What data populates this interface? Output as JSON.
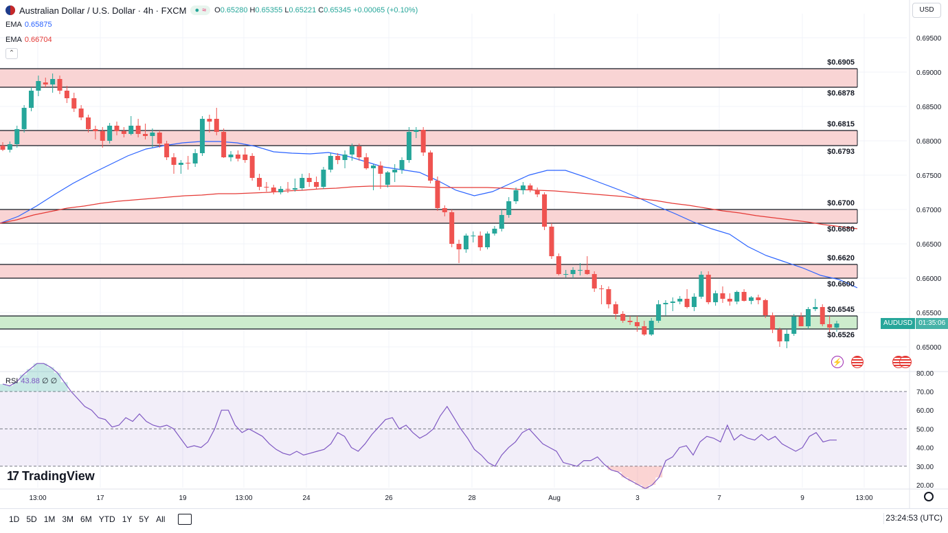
{
  "header": {
    "symbol": "Australian Dollar / U.S. Dollar · 4h · FXCM",
    "pill_left": "≈",
    "open_label": "O",
    "open": "0.65280",
    "high_label": "H",
    "high": "0.65355",
    "low_label": "L",
    "low": "0.65221",
    "close_label": "C",
    "close": "0.65345",
    "change": "+0.00065 (+0.10%)",
    "currency": "USD"
  },
  "ema": [
    {
      "label": "EMA",
      "value": "0.65875",
      "color": "#2962ff"
    },
    {
      "label": "EMA",
      "value": "0.66704",
      "color": "#e53935"
    }
  ],
  "rsi_legend": {
    "label": "RSI",
    "value": "43.88",
    "extra": "∅ ∅"
  },
  "price_badge": {
    "symbol": "AUDUSD",
    "countdown": "01:35:06"
  },
  "logo": "TradingView",
  "timeframes": [
    "1D",
    "5D",
    "1M",
    "3M",
    "6M",
    "YTD",
    "1Y",
    "5Y",
    "All"
  ],
  "clock": "23:24:53 (UTC)",
  "colors": {
    "up": "#26a69a",
    "down": "#ef5350",
    "ema_fast": "#2962ff",
    "ema_slow": "#e53935",
    "rsi": "#7e57c2",
    "resistance": "#f9d4d4",
    "support": "#cdeccd"
  },
  "chart_data": [
    {
      "type": "candlestick",
      "title": "Australian Dollar / U.S. Dollar · 4h · FXCM",
      "y_ticks": [
        "0.69500",
        "0.69000",
        "0.68500",
        "0.68000",
        "0.67500",
        "0.67000",
        "0.66500",
        "0.66000",
        "0.65500",
        "0.65000"
      ],
      "ylim": [
        0.6493,
        0.6975
      ],
      "x_tick_labels": [
        "13:00",
        "17",
        "19",
        "13:00",
        "24",
        "26",
        "28",
        "Aug",
        "3",
        "7",
        "9",
        "13:00"
      ],
      "zones": [
        {
          "kind": "resistance",
          "low": 0.6878,
          "high": 0.6905,
          "labels": [
            "$0.6905",
            "$0.6878"
          ]
        },
        {
          "kind": "resistance",
          "low": 0.6793,
          "high": 0.6815,
          "labels": [
            "$0.6815",
            "$0.6793"
          ]
        },
        {
          "kind": "resistance",
          "low": 0.668,
          "high": 0.67,
          "labels": [
            "$0.6700",
            "$0.6680"
          ]
        },
        {
          "kind": "resistance",
          "low": 0.66,
          "high": 0.662,
          "labels": [
            "$0.6620",
            "$0.6600"
          ]
        },
        {
          "kind": "support",
          "low": 0.6526,
          "high": 0.6545,
          "labels": [
            "$0.6545",
            "$0.6526"
          ]
        }
      ],
      "candles": [
        [
          0.6793,
          0.6798,
          0.6785,
          0.6787
        ],
        [
          0.6787,
          0.6799,
          0.6783,
          0.6795
        ],
        [
          0.6795,
          0.6822,
          0.679,
          0.6817
        ],
        [
          0.6817,
          0.6852,
          0.6812,
          0.6848
        ],
        [
          0.6848,
          0.6878,
          0.6843,
          0.6873
        ],
        [
          0.6873,
          0.6895,
          0.6865,
          0.6887
        ],
        [
          0.6885,
          0.6892,
          0.6878,
          0.6882
        ],
        [
          0.6882,
          0.6898,
          0.687,
          0.689
        ],
        [
          0.689,
          0.6895,
          0.6868,
          0.6873
        ],
        [
          0.6873,
          0.688,
          0.6855,
          0.6862
        ],
        [
          0.6862,
          0.687,
          0.6842,
          0.6847
        ],
        [
          0.6847,
          0.6852,
          0.683,
          0.6834
        ],
        [
          0.6834,
          0.6838,
          0.6812,
          0.6817
        ],
        [
          0.6817,
          0.6822,
          0.6802,
          0.6814
        ],
        [
          0.6814,
          0.682,
          0.679,
          0.68
        ],
        [
          0.68,
          0.6826,
          0.6796,
          0.6822
        ],
        [
          0.6822,
          0.6828,
          0.6808,
          0.6814
        ],
        [
          0.6814,
          0.682,
          0.6805,
          0.681
        ],
        [
          0.681,
          0.6836,
          0.6808,
          0.6822
        ],
        [
          0.6822,
          0.6832,
          0.6805,
          0.681
        ],
        [
          0.681,
          0.6825,
          0.6802,
          0.6807
        ],
        [
          0.6807,
          0.6818,
          0.679,
          0.6812
        ],
        [
          0.6812,
          0.6815,
          0.679,
          0.6796
        ],
        [
          0.6796,
          0.68,
          0.6772,
          0.6776
        ],
        [
          0.6776,
          0.6782,
          0.6752,
          0.6765
        ],
        [
          0.6765,
          0.6772,
          0.6752,
          0.6768
        ],
        [
          0.6768,
          0.6778,
          0.6758,
          0.6767
        ],
        [
          0.6767,
          0.6788,
          0.6762,
          0.6782
        ],
        [
          0.6782,
          0.6836,
          0.6778,
          0.6832
        ],
        [
          0.6832,
          0.6838,
          0.6812,
          0.6828
        ],
        [
          0.6832,
          0.6848,
          0.6808,
          0.6813
        ],
        [
          0.6813,
          0.6818,
          0.6775,
          0.6776
        ],
        [
          0.6776,
          0.6785,
          0.677,
          0.678
        ],
        [
          0.678,
          0.6786,
          0.677,
          0.6774
        ],
        [
          0.678,
          0.679,
          0.6768,
          0.6772
        ],
        [
          0.6778,
          0.6782,
          0.6742,
          0.6746
        ],
        [
          0.6746,
          0.6752,
          0.6728,
          0.6733
        ],
        [
          0.6733,
          0.674,
          0.6726,
          0.6732
        ],
        [
          0.6732,
          0.6736,
          0.6722,
          0.6725
        ],
        [
          0.6725,
          0.6734,
          0.6722,
          0.673
        ],
        [
          0.673,
          0.674,
          0.6724,
          0.6729
        ],
        [
          0.6729,
          0.6745,
          0.6726,
          0.6731
        ],
        [
          0.6731,
          0.6752,
          0.6728,
          0.6746
        ],
        [
          0.6746,
          0.6753,
          0.6733,
          0.674
        ],
        [
          0.674,
          0.6748,
          0.673,
          0.6733
        ],
        [
          0.6733,
          0.6762,
          0.673,
          0.6758
        ],
        [
          0.6758,
          0.6782,
          0.6754,
          0.6778
        ],
        [
          0.6778,
          0.6782,
          0.6766,
          0.6772
        ],
        [
          0.6772,
          0.6786,
          0.676,
          0.678
        ],
        [
          0.678,
          0.6796,
          0.6771,
          0.6792
        ],
        [
          0.6792,
          0.6796,
          0.6771,
          0.6776
        ],
        [
          0.6776,
          0.6782,
          0.6758,
          0.676
        ],
        [
          0.676,
          0.6766,
          0.6728,
          0.6764
        ],
        [
          0.6764,
          0.677,
          0.673,
          0.6752
        ],
        [
          0.6736,
          0.6756,
          0.6732,
          0.6754
        ],
        [
          0.6754,
          0.6766,
          0.674,
          0.6758
        ],
        [
          0.6758,
          0.6776,
          0.6752,
          0.6772
        ],
        [
          0.6772,
          0.682,
          0.6768,
          0.6813
        ],
        [
          0.6813,
          0.682,
          0.6804,
          0.6816
        ],
        [
          0.6816,
          0.682,
          0.6778,
          0.6783
        ],
        [
          0.6783,
          0.6786,
          0.6738,
          0.6742
        ],
        [
          0.6742,
          0.6748,
          0.6698,
          0.6702
        ],
        [
          0.6702,
          0.6706,
          0.669,
          0.6696
        ],
        [
          0.6696,
          0.67,
          0.6645,
          0.665
        ],
        [
          0.665,
          0.6656,
          0.6622,
          0.6642
        ],
        [
          0.6642,
          0.6665,
          0.6637,
          0.6662
        ],
        [
          0.6662,
          0.6668,
          0.6652,
          0.6662
        ],
        [
          0.6662,
          0.6668,
          0.664,
          0.6645
        ],
        [
          0.6645,
          0.6668,
          0.6642,
          0.6665
        ],
        [
          0.6665,
          0.6676,
          0.6662,
          0.6672
        ],
        [
          0.6672,
          0.67,
          0.6668,
          0.6692
        ],
        [
          0.6692,
          0.6718,
          0.6688,
          0.6712
        ],
        [
          0.6712,
          0.6732,
          0.6708,
          0.6728
        ],
        [
          0.6728,
          0.674,
          0.6722,
          0.6735
        ],
        [
          0.6735,
          0.6738,
          0.6725,
          0.6728
        ],
        [
          0.6728,
          0.6732,
          0.6718,
          0.6722
        ],
        [
          0.6722,
          0.6725,
          0.667,
          0.6675
        ],
        [
          0.6675,
          0.668,
          0.6628,
          0.6632
        ],
        [
          0.6632,
          0.6636,
          0.6604,
          0.6606
        ],
        [
          0.6606,
          0.6612,
          0.6601,
          0.6606
        ],
        [
          0.6606,
          0.6616,
          0.66,
          0.6612
        ],
        [
          0.6612,
          0.6622,
          0.6604,
          0.6612
        ],
        [
          0.6612,
          0.6632,
          0.6605,
          0.6606
        ],
        [
          0.6606,
          0.661,
          0.658,
          0.6585
        ],
        [
          0.6585,
          0.659,
          0.6562,
          0.6584
        ],
        [
          0.6584,
          0.6588,
          0.6556,
          0.6562
        ],
        [
          0.6562,
          0.6566,
          0.654,
          0.6548
        ],
        [
          0.6548,
          0.6552,
          0.6535,
          0.6538
        ],
        [
          0.6538,
          0.6545,
          0.6532,
          0.6536
        ],
        [
          0.6536,
          0.6545,
          0.6522,
          0.653
        ],
        [
          0.653,
          0.6538,
          0.6516,
          0.6518
        ],
        [
          0.6518,
          0.6542,
          0.6516,
          0.6538
        ],
        [
          0.6538,
          0.6568,
          0.6535,
          0.6562
        ],
        [
          0.6562,
          0.6568,
          0.6546,
          0.6564
        ],
        [
          0.6564,
          0.6572,
          0.6552,
          0.6566
        ],
        [
          0.6566,
          0.6574,
          0.6562,
          0.657
        ],
        [
          0.657,
          0.6584,
          0.6556,
          0.6558
        ],
        [
          0.6558,
          0.6578,
          0.6552,
          0.6573
        ],
        [
          0.6573,
          0.661,
          0.657,
          0.6605
        ],
        [
          0.6605,
          0.661,
          0.6562,
          0.6565
        ],
        [
          0.6565,
          0.6582,
          0.656,
          0.6578
        ],
        [
          0.6578,
          0.6588,
          0.6564,
          0.657
        ],
        [
          0.657,
          0.6578,
          0.656,
          0.6566
        ],
        [
          0.6566,
          0.6582,
          0.6562,
          0.658
        ],
        [
          0.658,
          0.6584,
          0.6566,
          0.6567
        ],
        [
          0.6567,
          0.6574,
          0.6562,
          0.6572
        ],
        [
          0.6572,
          0.6576,
          0.6562,
          0.6568
        ],
        [
          0.6568,
          0.657,
          0.6542,
          0.6546
        ],
        [
          0.6546,
          0.655,
          0.652,
          0.6525
        ],
        [
          0.6525,
          0.6528,
          0.65,
          0.6508
        ],
        [
          0.6508,
          0.6525,
          0.6498,
          0.6519
        ],
        [
          0.6519,
          0.6548,
          0.6516,
          0.6544
        ],
        [
          0.6544,
          0.655,
          0.653,
          0.653
        ],
        [
          0.653,
          0.6558,
          0.6526,
          0.6555
        ],
        [
          0.6555,
          0.657,
          0.6552,
          0.6558
        ],
        [
          0.6558,
          0.6562,
          0.653,
          0.6533
        ],
        [
          0.6533,
          0.6545,
          0.652,
          0.6528
        ],
        [
          0.6528,
          0.6538,
          0.6522,
          0.6534
        ]
      ],
      "ema_fast": [
        0.668,
        0.669,
        0.6705,
        0.6722,
        0.6738,
        0.6752,
        0.6765,
        0.6778,
        0.6788,
        0.6793,
        0.6797,
        0.6799,
        0.6799,
        0.6797,
        0.6792,
        0.6784,
        0.6782,
        0.6781,
        0.6783,
        0.6778,
        0.677,
        0.6762,
        0.6758,
        0.6754,
        0.6742,
        0.6728,
        0.672,
        0.6726,
        0.6738,
        0.675,
        0.6757,
        0.6757,
        0.6748,
        0.6738,
        0.6728,
        0.6717,
        0.6705,
        0.6694,
        0.6682,
        0.6672,
        0.6664,
        0.6646,
        0.6633,
        0.6624,
        0.6615,
        0.6604,
        0.6598,
        0.6586
      ],
      "ema_slow": [
        0.668,
        0.6685,
        0.6692,
        0.6697,
        0.6702,
        0.6705,
        0.6709,
        0.6712,
        0.6714,
        0.6716,
        0.6718,
        0.672,
        0.6721,
        0.6723,
        0.6723,
        0.6724,
        0.6725,
        0.6727,
        0.6728,
        0.673,
        0.6731,
        0.6733,
        0.6734,
        0.6734,
        0.6734,
        0.6733,
        0.6732,
        0.6732,
        0.6732,
        0.6732,
        0.6731,
        0.6729,
        0.6728,
        0.6727,
        0.6725,
        0.6723,
        0.6721,
        0.6719,
        0.6716,
        0.6713,
        0.6709,
        0.6706,
        0.6702,
        0.6698,
        0.6695,
        0.6691,
        0.6688,
        0.6685,
        0.6682,
        0.6678,
        0.6675,
        0.6672
      ]
    },
    {
      "type": "line",
      "title": "RSI",
      "y_ticks": [
        "80.00",
        "70.00",
        "60.00",
        "50.00",
        "40.00",
        "30.00",
        "20.00"
      ],
      "ylim": [
        18,
        82
      ],
      "bands": [
        70,
        50,
        30
      ],
      "values": [
        74,
        73,
        75,
        79,
        82,
        85,
        85,
        83,
        80,
        75,
        70,
        66,
        62,
        60,
        56,
        55,
        51,
        52,
        56,
        54,
        58,
        54,
        52,
        51,
        52,
        50,
        45,
        40,
        41,
        40,
        43,
        50,
        60,
        60,
        52,
        48,
        50,
        48,
        46,
        42,
        39,
        37,
        36,
        38,
        36,
        37,
        38,
        39,
        42,
        48,
        46,
        40,
        38,
        42,
        47,
        51,
        55,
        56,
        50,
        52,
        48,
        45,
        47,
        50,
        57,
        62,
        56,
        50,
        45,
        39,
        36,
        32,
        30,
        36,
        40,
        43,
        48,
        50,
        46,
        42,
        40,
        38,
        32,
        31,
        30,
        33,
        33,
        35,
        31,
        28,
        27,
        24,
        22,
        20,
        18,
        20,
        24,
        33,
        35,
        40,
        41,
        36,
        43,
        46,
        45,
        43,
        52,
        44,
        47,
        45,
        44,
        47,
        44,
        46,
        42,
        40,
        38,
        40,
        46,
        48,
        43,
        44,
        44
      ]
    }
  ]
}
